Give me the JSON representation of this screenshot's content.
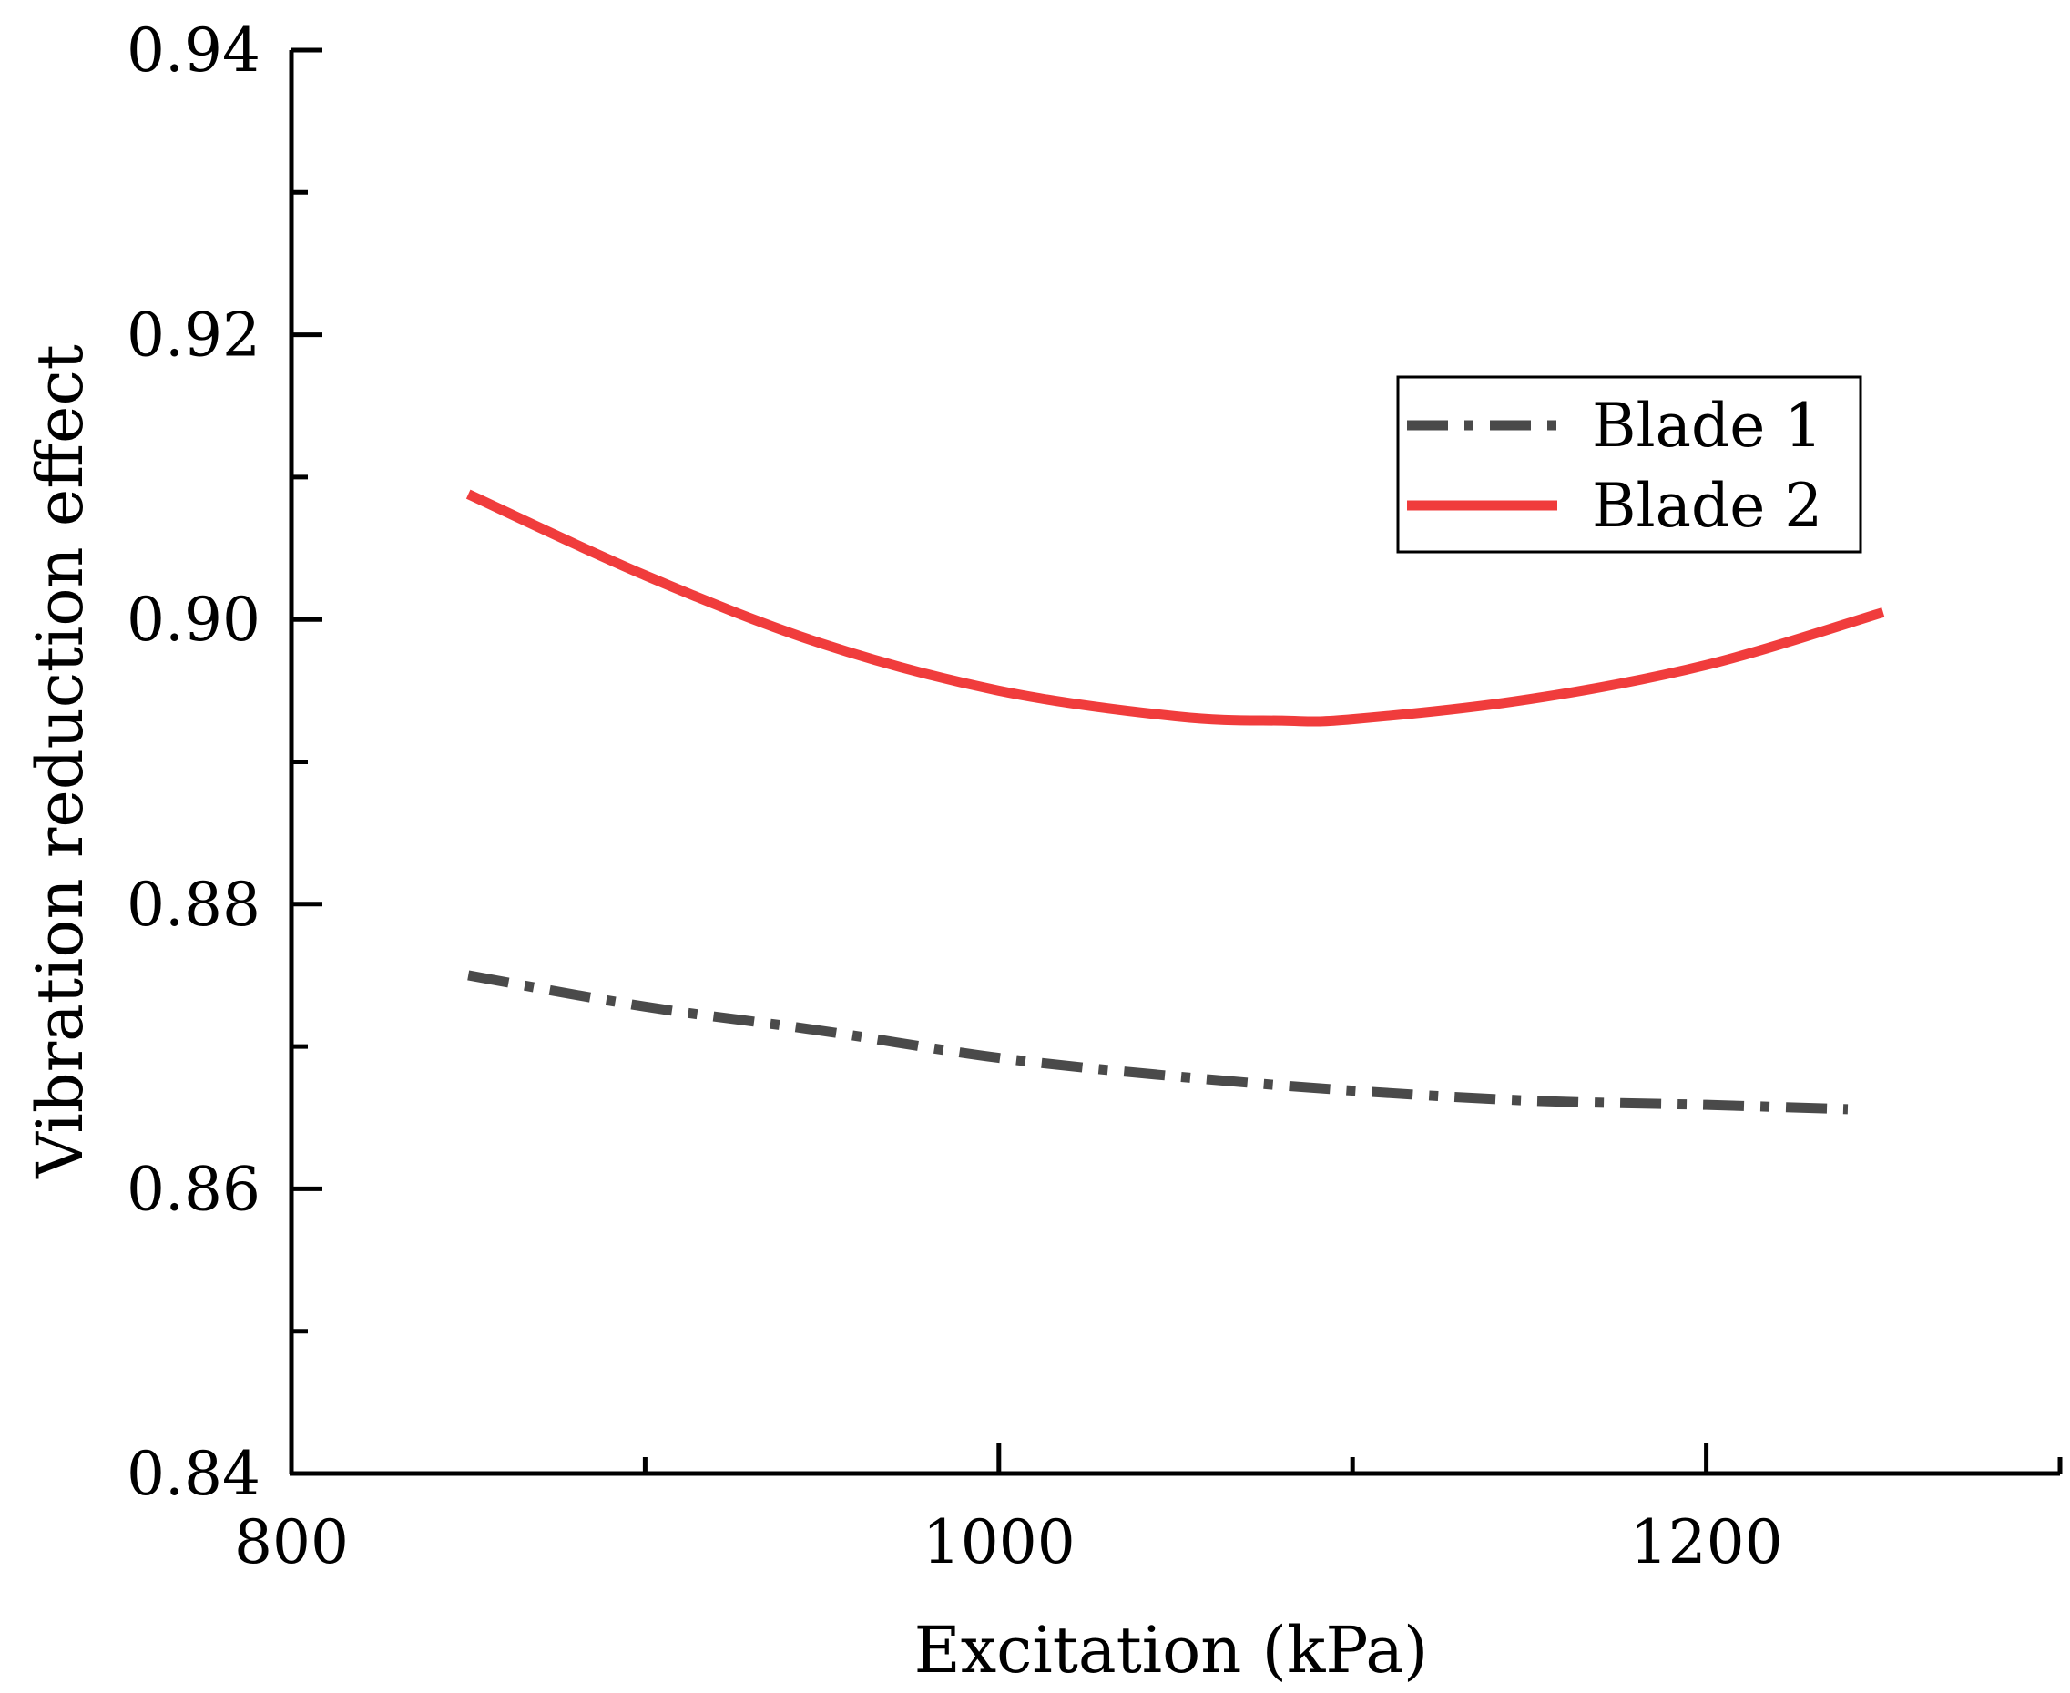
{
  "chart_data": {
    "type": "line",
    "xlabel": "Excitation (kPa)",
    "ylabel": "Vibration reduction effect",
    "xlim": [
      800,
      1300
    ],
    "ylim": [
      0.84,
      0.94
    ],
    "x_ticks": [
      800,
      1000,
      1200
    ],
    "x_tick_labels": [
      "800",
      "1000",
      "1200"
    ],
    "y_ticks": [
      0.84,
      0.86,
      0.88,
      0.9,
      0.92,
      0.94
    ],
    "y_tick_labels": [
      "0.84",
      "0.86",
      "0.88",
      "0.90",
      "0.92",
      "0.94"
    ],
    "grid": false,
    "legend_position": "top-right",
    "series": [
      {
        "name": "Blade 1",
        "color": "#4a4a4a",
        "line_style": "dash-dot",
        "x": [
          850,
          900,
          950,
          1000,
          1050,
          1100,
          1150,
          1200,
          1240
        ],
        "y": [
          0.875,
          0.8728,
          0.8711,
          0.8692,
          0.8679,
          0.8669,
          0.8662,
          0.8659,
          0.8656
        ]
      },
      {
        "name": "Blade 2",
        "color": "#f03c3c",
        "line_style": "solid",
        "x": [
          850,
          900,
          950,
          1000,
          1050,
          1080,
          1100,
          1150,
          1200,
          1250
        ],
        "y": [
          0.9088,
          0.9031,
          0.8983,
          0.895,
          0.8932,
          0.8929,
          0.893,
          0.8944,
          0.8968,
          0.9005
        ]
      }
    ]
  }
}
